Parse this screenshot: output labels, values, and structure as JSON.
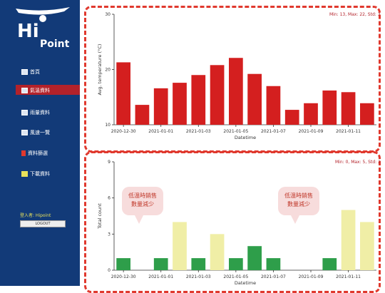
{
  "sidebar": {
    "logo": {
      "hi": "Hi",
      "point": "Point"
    },
    "items": [
      {
        "label": "首頁",
        "icon": "home-icon"
      },
      {
        "label": "氣溫資料",
        "icon": "thermometer-icon",
        "active": true
      },
      {
        "label": "雨量資料",
        "icon": "rain-icon"
      },
      {
        "label": "風速一覽",
        "icon": "wind-icon"
      },
      {
        "label": "資料篩選",
        "icon": "filter-icon"
      },
      {
        "label": "下載資料",
        "icon": "download-icon"
      }
    ],
    "user_label": "登入者: Hipoint",
    "user_button": "LOGOUT"
  },
  "colors": {
    "sidebar": "#123a78",
    "accent": "#b3222a",
    "bar_red": "#d41f1f",
    "bar_green": "#2e9e4a",
    "bar_yellow": "#f0eea6",
    "dash": "#e0392e"
  },
  "chart_data": [
    {
      "type": "bar",
      "note": "Min: 13, Max: 22, Std: 3",
      "ylabel": "Avg. temperature (°C)",
      "xlabel": "Datetime",
      "ylim": [
        10,
        30
      ],
      "yticks": [
        "10",
        "20",
        "30"
      ],
      "xticks": [
        "2020-12-30",
        "2021-01-01",
        "2021-01-03",
        "2021-01-05",
        "2021-01-07",
        "2021-01-09",
        "2021-01-11"
      ],
      "values": [
        21.3,
        13.6,
        16.6,
        17.6,
        19.0,
        20.8,
        22.1,
        19.2,
        17.0,
        12.7,
        13.9,
        16.2,
        15.9,
        13.9
      ]
    },
    {
      "type": "bar",
      "note": "Min: 0, Max: 5, Std: 2",
      "ylabel": "Total count",
      "xlabel": "Datetime",
      "ylim": [
        0,
        9
      ],
      "yticks": [
        "0",
        "3",
        "6",
        "9"
      ],
      "xticks": [
        "2020-12-30",
        "2021-01-01",
        "2021-01-03",
        "2021-01-05",
        "2021-01-07",
        "2021-01-09",
        "2021-01-11"
      ],
      "values": [
        1,
        0,
        1,
        4,
        1,
        3,
        1,
        2,
        1,
        0,
        0,
        1,
        5,
        4
      ],
      "colors": [
        "green",
        "green",
        "green",
        "yellow",
        "green",
        "yellow",
        "green",
        "green",
        "green",
        "green",
        "green",
        "green",
        "yellow",
        "yellow"
      ],
      "annotations": [
        "低溫時銷售\n數量減少",
        "低溫時銷售\n數量減少"
      ]
    }
  ]
}
